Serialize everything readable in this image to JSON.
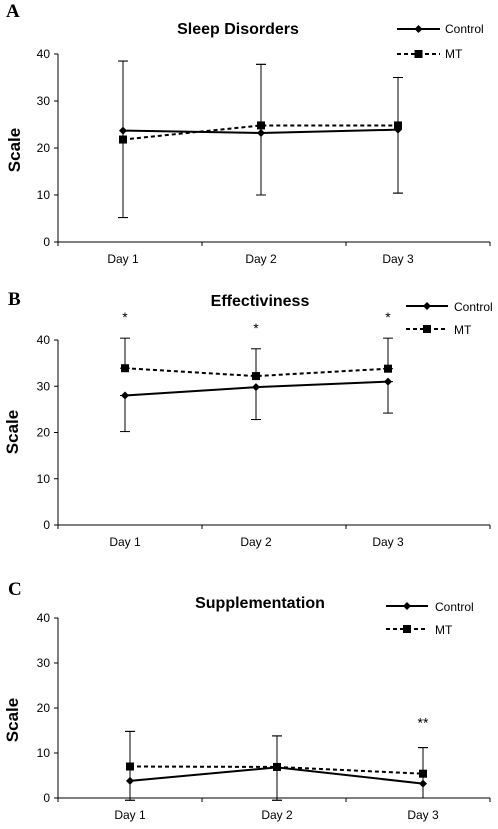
{
  "chart_data": [
    {
      "type": "line",
      "panel": "A",
      "title": "Sleep Disorders",
      "ylabel": "Scale",
      "categories": [
        "Day 1",
        "Day 2",
        "Day 3"
      ],
      "ylim": [
        0,
        40
      ],
      "yticks": [
        "0",
        "10",
        "20",
        "30",
        "40"
      ],
      "series": [
        {
          "name": "Control",
          "style": "solid",
          "marker": "diamond",
          "values": [
            23.7,
            23.2,
            23.9
          ],
          "error_upper": [
            38.5,
            37.8,
            35.0
          ],
          "error_lower": [
            5.2,
            10.0,
            10.4
          ]
        },
        {
          "name": "MT",
          "style": "dashed",
          "marker": "square",
          "values": [
            21.8,
            24.8,
            24.8
          ],
          "error_upper": [
            38.5,
            37.8,
            35.0
          ],
          "error_lower": [
            5.2,
            10.0,
            10.4
          ]
        }
      ],
      "annotations": [
        "",
        "",
        ""
      ],
      "legend_position": "top-right"
    },
    {
      "type": "line",
      "panel": "B",
      "title": "Effectiviness",
      "ylabel": "Scale",
      "categories": [
        "Day 1",
        "Day 2",
        "Day 3"
      ],
      "ylim": [
        0,
        40
      ],
      "yticks": [
        "0",
        "10",
        "20",
        "30",
        "40"
      ],
      "series": [
        {
          "name": "Control",
          "style": "solid",
          "marker": "diamond",
          "values": [
            28.0,
            29.8,
            31.0
          ],
          "error_upper": [
            28.0,
            29.8,
            31.0
          ],
          "error_lower": [
            20.2,
            22.8,
            24.2
          ]
        },
        {
          "name": "MT",
          "style": "dashed",
          "marker": "square",
          "values": [
            33.9,
            32.2,
            33.8
          ],
          "error_upper": [
            40.4,
            38.1,
            40.4
          ],
          "error_lower": [
            33.9,
            32.2,
            33.8
          ]
        }
      ],
      "annotations": [
        "*",
        "*",
        "*"
      ],
      "legend_position": "top-right"
    },
    {
      "type": "line",
      "panel": "C",
      "title": "Supplementation",
      "ylabel": "Scale",
      "categories": [
        "Day 1",
        "Day 2",
        "Day 3"
      ],
      "ylim": [
        0,
        40
      ],
      "yticks": [
        "0",
        "10",
        "20",
        "30",
        "40"
      ],
      "series": [
        {
          "name": "Control",
          "style": "solid",
          "marker": "diamond",
          "values": [
            3.8,
            6.8,
            3.2
          ],
          "error_upper": [
            14.8,
            13.8,
            11.2
          ],
          "error_lower": [
            -0.5,
            -0.5,
            0.0
          ]
        },
        {
          "name": "MT",
          "style": "dashed",
          "marker": "square",
          "values": [
            7.0,
            6.9,
            5.4
          ],
          "error_upper": [
            14.8,
            13.8,
            11.2
          ],
          "error_lower": [
            -0.5,
            -0.5,
            0.0
          ]
        }
      ],
      "annotations": [
        "",
        "",
        "**"
      ],
      "legend_position": "top-right"
    }
  ]
}
